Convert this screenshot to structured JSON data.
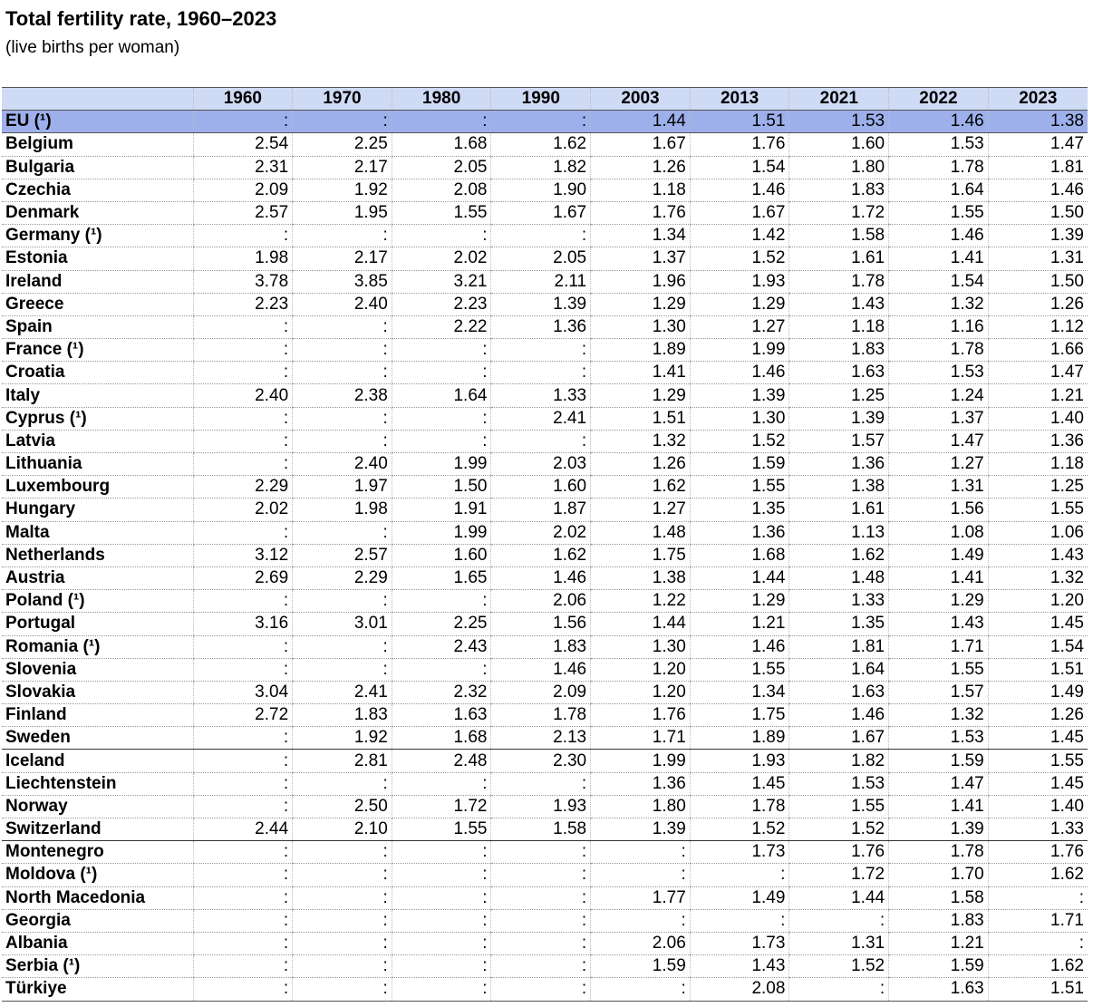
{
  "header": {
    "title": "Total fertility rate, 1960–2023",
    "subtitle": "(live births per woman)"
  },
  "table": {
    "columns": [
      "1960",
      "1970",
      "1980",
      "1990",
      "2003",
      "2013",
      "2021",
      "2022",
      "2023"
    ],
    "groups": [
      [
        [
          "EU (¹)",
          ":",
          ":",
          ":",
          ":",
          "1.44",
          "1.51",
          "1.53",
          "1.46",
          "1.38"
        ],
        [
          "Belgium",
          "2.54",
          "2.25",
          "1.68",
          "1.62",
          "1.67",
          "1.76",
          "1.60",
          "1.53",
          "1.47"
        ],
        [
          "Bulgaria",
          "2.31",
          "2.17",
          "2.05",
          "1.82",
          "1.26",
          "1.54",
          "1.80",
          "1.78",
          "1.81"
        ],
        [
          "Czechia",
          "2.09",
          "1.92",
          "2.08",
          "1.90",
          "1.18",
          "1.46",
          "1.83",
          "1.64",
          "1.46"
        ],
        [
          "Denmark",
          "2.57",
          "1.95",
          "1.55",
          "1.67",
          "1.76",
          "1.67",
          "1.72",
          "1.55",
          "1.50"
        ],
        [
          "Germany (¹)",
          ":",
          ":",
          ":",
          ":",
          "1.34",
          "1.42",
          "1.58",
          "1.46",
          "1.39"
        ],
        [
          "Estonia",
          "1.98",
          "2.17",
          "2.02",
          "2.05",
          "1.37",
          "1.52",
          "1.61",
          "1.41",
          "1.31"
        ],
        [
          "Ireland",
          "3.78",
          "3.85",
          "3.21",
          "2.11",
          "1.96",
          "1.93",
          "1.78",
          "1.54",
          "1.50"
        ],
        [
          "Greece",
          "2.23",
          "2.40",
          "2.23",
          "1.39",
          "1.29",
          "1.29",
          "1.43",
          "1.32",
          "1.26"
        ],
        [
          "Spain",
          ":",
          ":",
          "2.22",
          "1.36",
          "1.30",
          "1.27",
          "1.18",
          "1.16",
          "1.12"
        ],
        [
          "France (¹)",
          ":",
          ":",
          ":",
          ":",
          "1.89",
          "1.99",
          "1.83",
          "1.78",
          "1.66"
        ],
        [
          "Croatia",
          ":",
          ":",
          ":",
          ":",
          "1.41",
          "1.46",
          "1.63",
          "1.53",
          "1.47"
        ],
        [
          "Italy",
          "2.40",
          "2.38",
          "1.64",
          "1.33",
          "1.29",
          "1.39",
          "1.25",
          "1.24",
          "1.21"
        ],
        [
          "Cyprus (¹)",
          ":",
          ":",
          ":",
          "2.41",
          "1.51",
          "1.30",
          "1.39",
          "1.37",
          "1.40"
        ],
        [
          "Latvia",
          ":",
          ":",
          ":",
          ":",
          "1.32",
          "1.52",
          "1.57",
          "1.47",
          "1.36"
        ],
        [
          "Lithuania",
          ":",
          "2.40",
          "1.99",
          "2.03",
          "1.26",
          "1.59",
          "1.36",
          "1.27",
          "1.18"
        ],
        [
          "Luxembourg",
          "2.29",
          "1.97",
          "1.50",
          "1.60",
          "1.62",
          "1.55",
          "1.38",
          "1.31",
          "1.25"
        ],
        [
          "Hungary",
          "2.02",
          "1.98",
          "1.91",
          "1.87",
          "1.27",
          "1.35",
          "1.61",
          "1.56",
          "1.55"
        ],
        [
          "Malta",
          ":",
          ":",
          "1.99",
          "2.02",
          "1.48",
          "1.36",
          "1.13",
          "1.08",
          "1.06"
        ],
        [
          "Netherlands",
          "3.12",
          "2.57",
          "1.60",
          "1.62",
          "1.75",
          "1.68",
          "1.62",
          "1.49",
          "1.43"
        ],
        [
          "Austria",
          "2.69",
          "2.29",
          "1.65",
          "1.46",
          "1.38",
          "1.44",
          "1.48",
          "1.41",
          "1.32"
        ],
        [
          "Poland (¹)",
          ":",
          ":",
          ":",
          "2.06",
          "1.22",
          "1.29",
          "1.33",
          "1.29",
          "1.20"
        ],
        [
          "Portugal",
          "3.16",
          "3.01",
          "2.25",
          "1.56",
          "1.44",
          "1.21",
          "1.35",
          "1.43",
          "1.45"
        ],
        [
          "Romania (¹)",
          ":",
          ":",
          "2.43",
          "1.83",
          "1.30",
          "1.46",
          "1.81",
          "1.71",
          "1.54"
        ],
        [
          "Slovenia",
          ":",
          ":",
          ":",
          "1.46",
          "1.20",
          "1.55",
          "1.64",
          "1.55",
          "1.51"
        ],
        [
          "Slovakia",
          "3.04",
          "2.41",
          "2.32",
          "2.09",
          "1.20",
          "1.34",
          "1.63",
          "1.57",
          "1.49"
        ],
        [
          "Finland",
          "2.72",
          "1.83",
          "1.63",
          "1.78",
          "1.76",
          "1.75",
          "1.46",
          "1.32",
          "1.26"
        ],
        [
          "Sweden",
          ":",
          "1.92",
          "1.68",
          "2.13",
          "1.71",
          "1.89",
          "1.67",
          "1.53",
          "1.45"
        ]
      ],
      [
        [
          "Iceland",
          ":",
          "2.81",
          "2.48",
          "2.30",
          "1.99",
          "1.93",
          "1.82",
          "1.59",
          "1.55"
        ],
        [
          "Liechtenstein",
          ":",
          ":",
          ":",
          ":",
          "1.36",
          "1.45",
          "1.53",
          "1.47",
          "1.45"
        ],
        [
          "Norway",
          ":",
          "2.50",
          "1.72",
          "1.93",
          "1.80",
          "1.78",
          "1.55",
          "1.41",
          "1.40"
        ],
        [
          "Switzerland",
          "2.44",
          "2.10",
          "1.55",
          "1.58",
          "1.39",
          "1.52",
          "1.52",
          "1.39",
          "1.33"
        ]
      ],
      [
        [
          "Montenegro",
          ":",
          ":",
          ":",
          ":",
          ":",
          "1.73",
          "1.76",
          "1.78",
          "1.76"
        ],
        [
          "Moldova (¹)",
          ":",
          ":",
          ":",
          ":",
          ":",
          ":",
          "1.72",
          "1.70",
          "1.62"
        ],
        [
          "North Macedonia",
          ":",
          ":",
          ":",
          ":",
          "1.77",
          "1.49",
          "1.44",
          "1.58",
          ":"
        ],
        [
          "Georgia",
          ":",
          ":",
          ":",
          ":",
          ":",
          ":",
          ":",
          "1.83",
          "1.71"
        ],
        [
          "Albania",
          ":",
          ":",
          ":",
          ":",
          "2.06",
          "1.73",
          "1.31",
          "1.21",
          ":"
        ],
        [
          "Serbia (¹)",
          ":",
          ":",
          ":",
          ":",
          "1.59",
          "1.43",
          "1.52",
          "1.59",
          "1.62"
        ],
        [
          "Türkiye",
          ":",
          ":",
          ":",
          ":",
          ":",
          "2.08",
          ":",
          "1.63",
          "1.51"
        ]
      ]
    ]
  }
}
